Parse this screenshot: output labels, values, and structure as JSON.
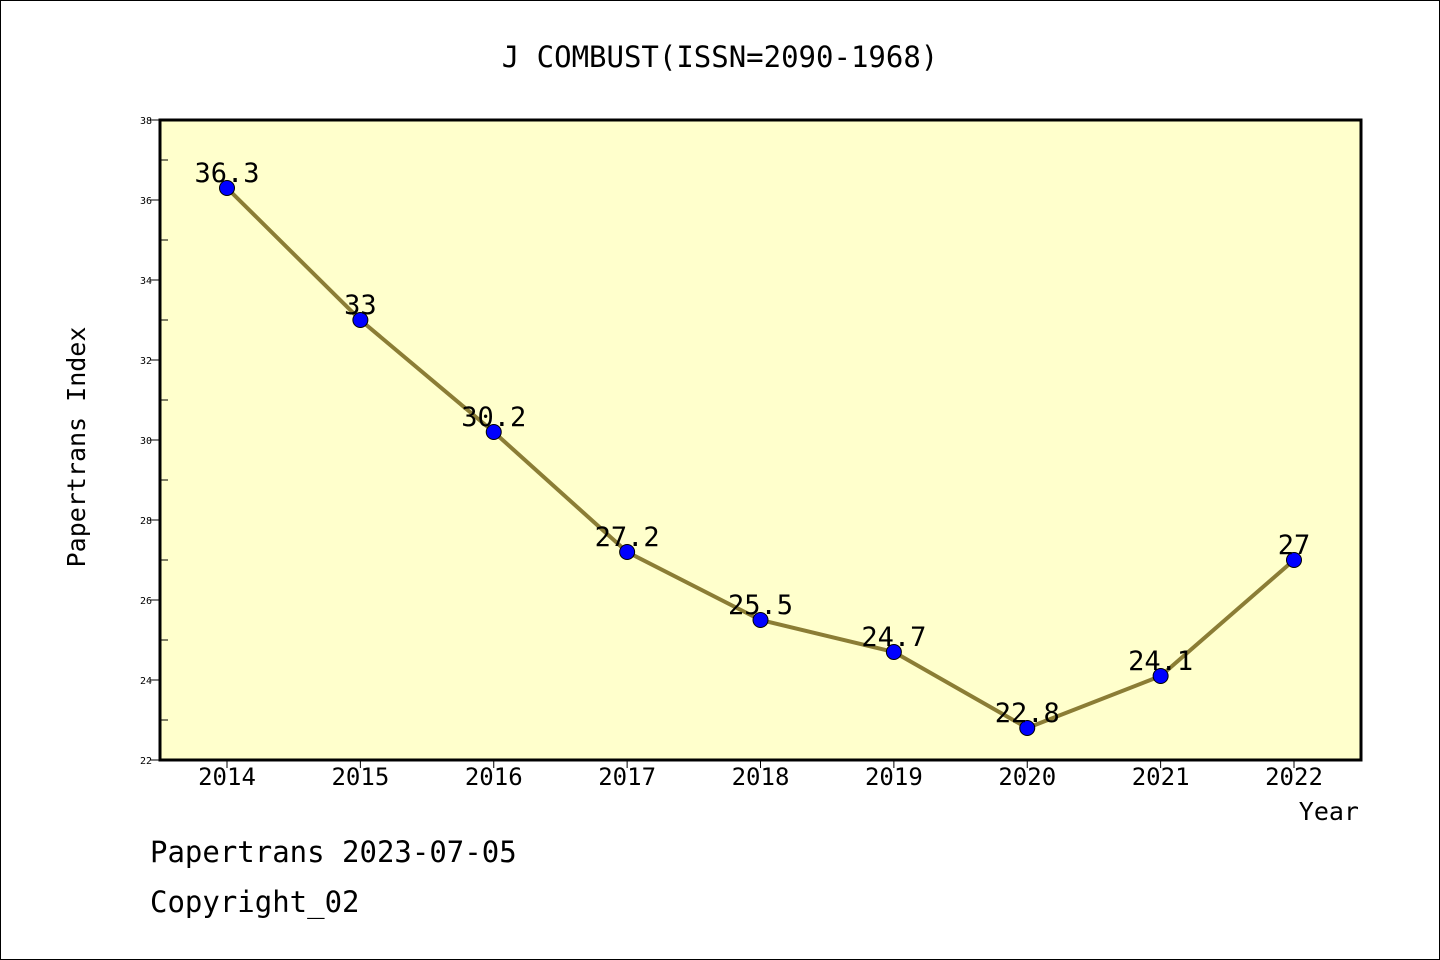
{
  "chart_data": {
    "type": "line",
    "title": "J COMBUST(ISSN=2090-1968)",
    "xlabel": "Year",
    "ylabel": "Papertrans Index",
    "categories": [
      "2014",
      "2015",
      "2016",
      "2017",
      "2018",
      "2019",
      "2020",
      "2021",
      "2022"
    ],
    "values": [
      36.3,
      33,
      30.2,
      27.2,
      25.5,
      24.7,
      22.8,
      24.1,
      27
    ],
    "data_labels": [
      "36.3",
      "33",
      "30.2",
      "27.2",
      "25.5",
      "24.7",
      "22.8",
      "24.1",
      "27"
    ],
    "ylim": [
      22,
      38
    ],
    "yticks": [
      "22",
      "24",
      "26",
      "28",
      "30",
      "32",
      "34",
      "36",
      "38"
    ],
    "grid": false,
    "colors": {
      "plot_background": "#ffffcc",
      "line": "#8b7d35",
      "marker": "#0000ff"
    }
  },
  "footer": {
    "date_line": "Papertrans 2023-07-05",
    "copyright": "Copyright_02"
  }
}
